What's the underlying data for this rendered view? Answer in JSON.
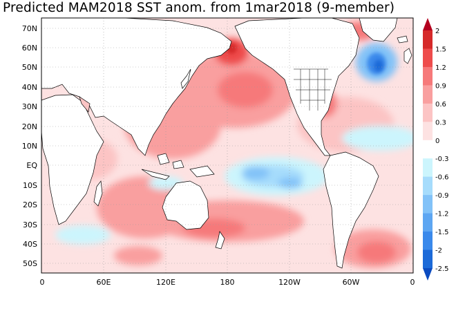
{
  "title": "Predicted MAM2018 SST anom. from 1mar2018 (9-member)",
  "map": {
    "lat_labels": [
      "70N",
      "60N",
      "50N",
      "40N",
      "30N",
      "20N",
      "10N",
      "EQ",
      "10S",
      "20S",
      "30S",
      "40S",
      "50S"
    ],
    "lon_labels": [
      "0",
      "60E",
      "120E",
      "180",
      "120W",
      "60W",
      "0"
    ],
    "lat_range": [
      -56,
      75
    ],
    "lon_range": [
      0,
      360
    ]
  },
  "colorbar": {
    "labels": [
      "2",
      "1.5",
      "1.2",
      "0.9",
      "0.6",
      "0.3",
      "0",
      "-0.3",
      "-0.6",
      "-0.9",
      "-1.2",
      "-1.5",
      "-2",
      "-2.5"
    ],
    "colors": [
      "#b4001e",
      "#d62a2a",
      "#ee4c4c",
      "#f6797a",
      "#f99f9f",
      "#fcc4c4",
      "#fde2e2",
      "#ffffff",
      "#ccf5fd",
      "#a6dcfc",
      "#82c2f8",
      "#5da6f2",
      "#3a89eb",
      "#1c6ad8",
      "#0b4bc0"
    ]
  }
}
